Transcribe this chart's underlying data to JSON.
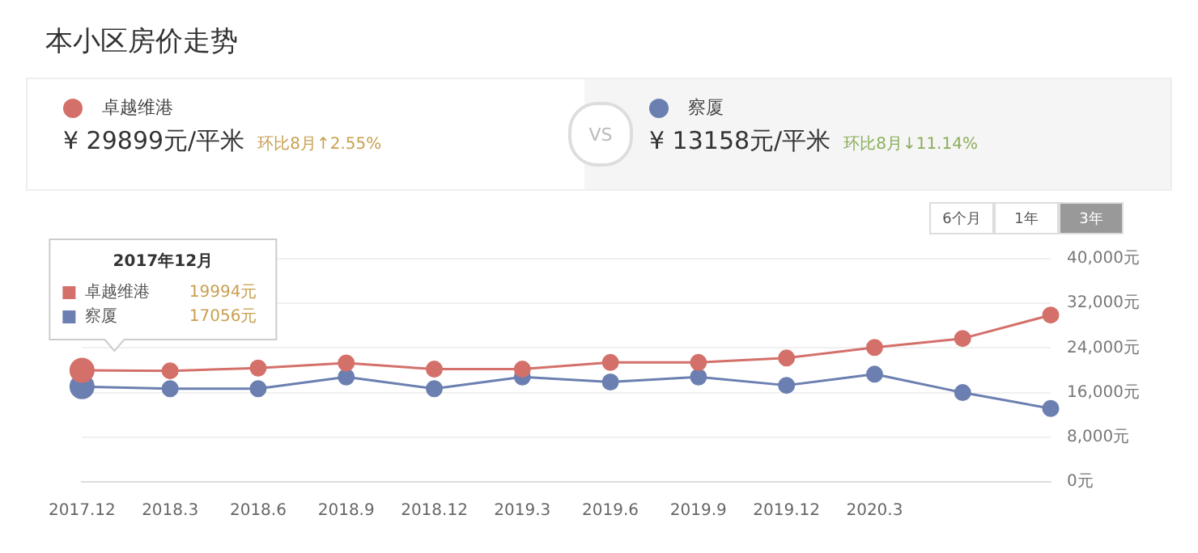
{
  "chart_data": {
    "type": "line",
    "title": "本小区房价走势",
    "categories": [
      "2017.12",
      "2018.3",
      "2018.6",
      "2018.9",
      "2018.12",
      "2019.3",
      "2019.6",
      "2019.9",
      "2019.12",
      "2020.3",
      null,
      null
    ],
    "series": [
      {
        "name": "卓越维港",
        "color": "#d4706a",
        "values": [
          19994,
          19900,
          20400,
          21300,
          20200,
          20200,
          21400,
          21400,
          22200,
          24100,
          25700,
          29899
        ]
      },
      {
        "name": "察厦",
        "color": "#6b7fb0",
        "values": [
          17056,
          16700,
          16700,
          18800,
          16700,
          18800,
          17900,
          18800,
          17300,
          19300,
          16000,
          13158
        ]
      }
    ],
    "ylim": [
      0,
      40000
    ],
    "yticks": [
      {
        "value": 0,
        "label": "0元"
      },
      {
        "value": 8000,
        "label": "8,000元"
      },
      {
        "value": 16000,
        "label": "16,000元"
      },
      {
        "value": 24000,
        "label": "24,000元"
      },
      {
        "value": 32000,
        "label": "32,000元"
      },
      {
        "value": 40000,
        "label": "40,000元"
      }
    ],
    "grid": "y",
    "legend": "top",
    "marker": "circle",
    "annotations": [
      "¥ 29899元/平米",
      "环比8月↑2.55%",
      "¥ 13158元/平米",
      "环比8月↓11.14%",
      "VS",
      "6个月",
      "1年",
      "3年",
      "2017年12月",
      "19994元",
      "17056元"
    ]
  }
}
